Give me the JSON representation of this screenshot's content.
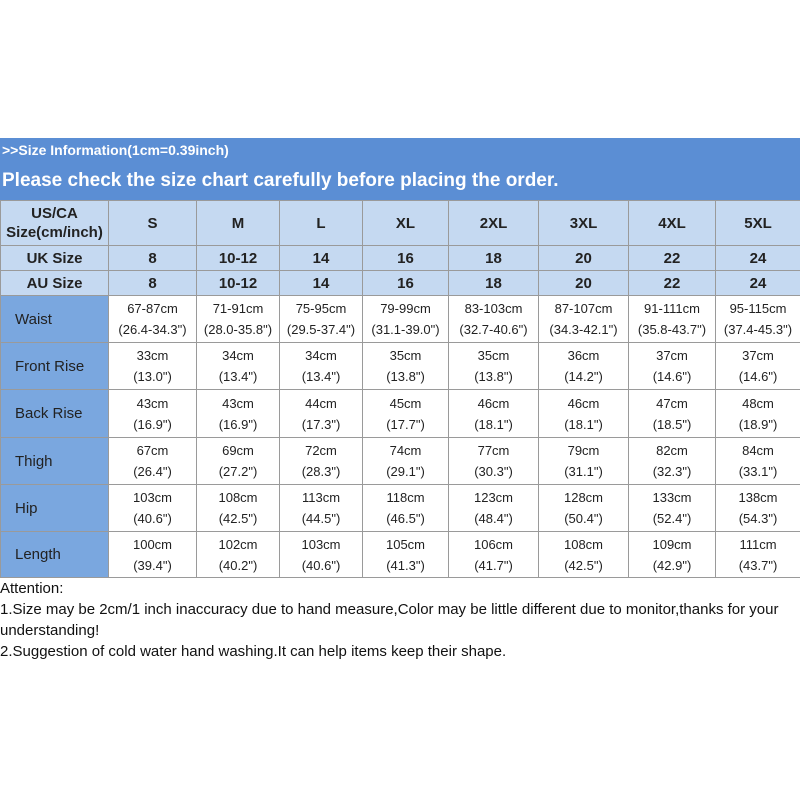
{
  "header": {
    "line1": ">>Size Information(1cm=0.39inch)",
    "line2": "Please check the size chart carefully before placing the order."
  },
  "table": {
    "rows": [
      [
        [
          "US/CA",
          "Size(cm/inch)"
        ],
        "S",
        "M",
        "L",
        "XL",
        "2XL",
        "3XL",
        "4XL",
        "5XL"
      ],
      [
        "UK Size",
        "8",
        "10-12",
        "14",
        "16",
        "18",
        "20",
        "22",
        "24"
      ],
      [
        "AU Size",
        "8",
        "10-12",
        "14",
        "16",
        "18",
        "20",
        "22",
        "24"
      ],
      [
        "Waist",
        [
          "67-87cm",
          "(26.4-34.3\")"
        ],
        [
          "71-91cm",
          "(28.0-35.8\")"
        ],
        [
          "75-95cm",
          "(29.5-37.4\")"
        ],
        [
          "79-99cm",
          "(31.1-39.0\")"
        ],
        [
          "83-103cm",
          "(32.7-40.6\")"
        ],
        [
          "87-107cm",
          "(34.3-42.1\")"
        ],
        [
          "91-111cm",
          "(35.8-43.7\")"
        ],
        [
          "95-115cm",
          "(37.4-45.3\")"
        ]
      ],
      [
        "Front Rise",
        [
          "33cm",
          "(13.0\")"
        ],
        [
          "34cm",
          "(13.4\")"
        ],
        [
          "34cm",
          "(13.4\")"
        ],
        [
          "35cm",
          "(13.8\")"
        ],
        [
          "35cm",
          "(13.8\")"
        ],
        [
          "36cm",
          "(14.2\")"
        ],
        [
          "37cm",
          "(14.6\")"
        ],
        [
          "37cm",
          "(14.6\")"
        ]
      ],
      [
        "Back Rise",
        [
          "43cm",
          "(16.9\")"
        ],
        [
          "43cm",
          "(16.9\")"
        ],
        [
          "44cm",
          "(17.3\")"
        ],
        [
          "45cm",
          "(17.7\")"
        ],
        [
          "46cm",
          "(18.1\")"
        ],
        [
          "46cm",
          "(18.1\")"
        ],
        [
          "47cm",
          "(18.5\")"
        ],
        [
          "48cm",
          "(18.9\")"
        ]
      ],
      [
        "Thigh",
        [
          "67cm",
          "(26.4\")"
        ],
        [
          "69cm",
          "(27.2\")"
        ],
        [
          "72cm",
          "(28.3\")"
        ],
        [
          "74cm",
          "(29.1\")"
        ],
        [
          "77cm",
          "(30.3\")"
        ],
        [
          "79cm",
          "(31.1\")"
        ],
        [
          "82cm",
          "(32.3\")"
        ],
        [
          "84cm",
          "(33.1\")"
        ]
      ],
      [
        "Hip",
        [
          "103cm",
          "(40.6\")"
        ],
        [
          "108cm",
          "(42.5\")"
        ],
        [
          "113cm",
          "(44.5\")"
        ],
        [
          "118cm",
          "(46.5\")"
        ],
        [
          "123cm",
          "(48.4\")"
        ],
        [
          "128cm",
          "(50.4\")"
        ],
        [
          "133cm",
          "(52.4\")"
        ],
        [
          "138cm",
          "(54.3\")"
        ]
      ],
      [
        "Length",
        [
          "100cm",
          "(39.4\")"
        ],
        [
          "102cm",
          "(40.2\")"
        ],
        [
          "103cm",
          "(40.6\")"
        ],
        [
          "105cm",
          "(41.3\")"
        ],
        [
          "106cm",
          "(41.7\")"
        ],
        [
          "108cm",
          "(42.5\")"
        ],
        [
          "109cm",
          "(42.9\")"
        ],
        [
          "111cm",
          "(43.7\")"
        ]
      ]
    ]
  },
  "notes": [
    "Attention:",
    "1.Size may be 2cm/1 inch inaccuracy due to hand measure,Color may be little different due to monitor,thanks for your understanding!",
    "2.Suggestion of cold water hand washing.It can help items keep their shape."
  ]
}
